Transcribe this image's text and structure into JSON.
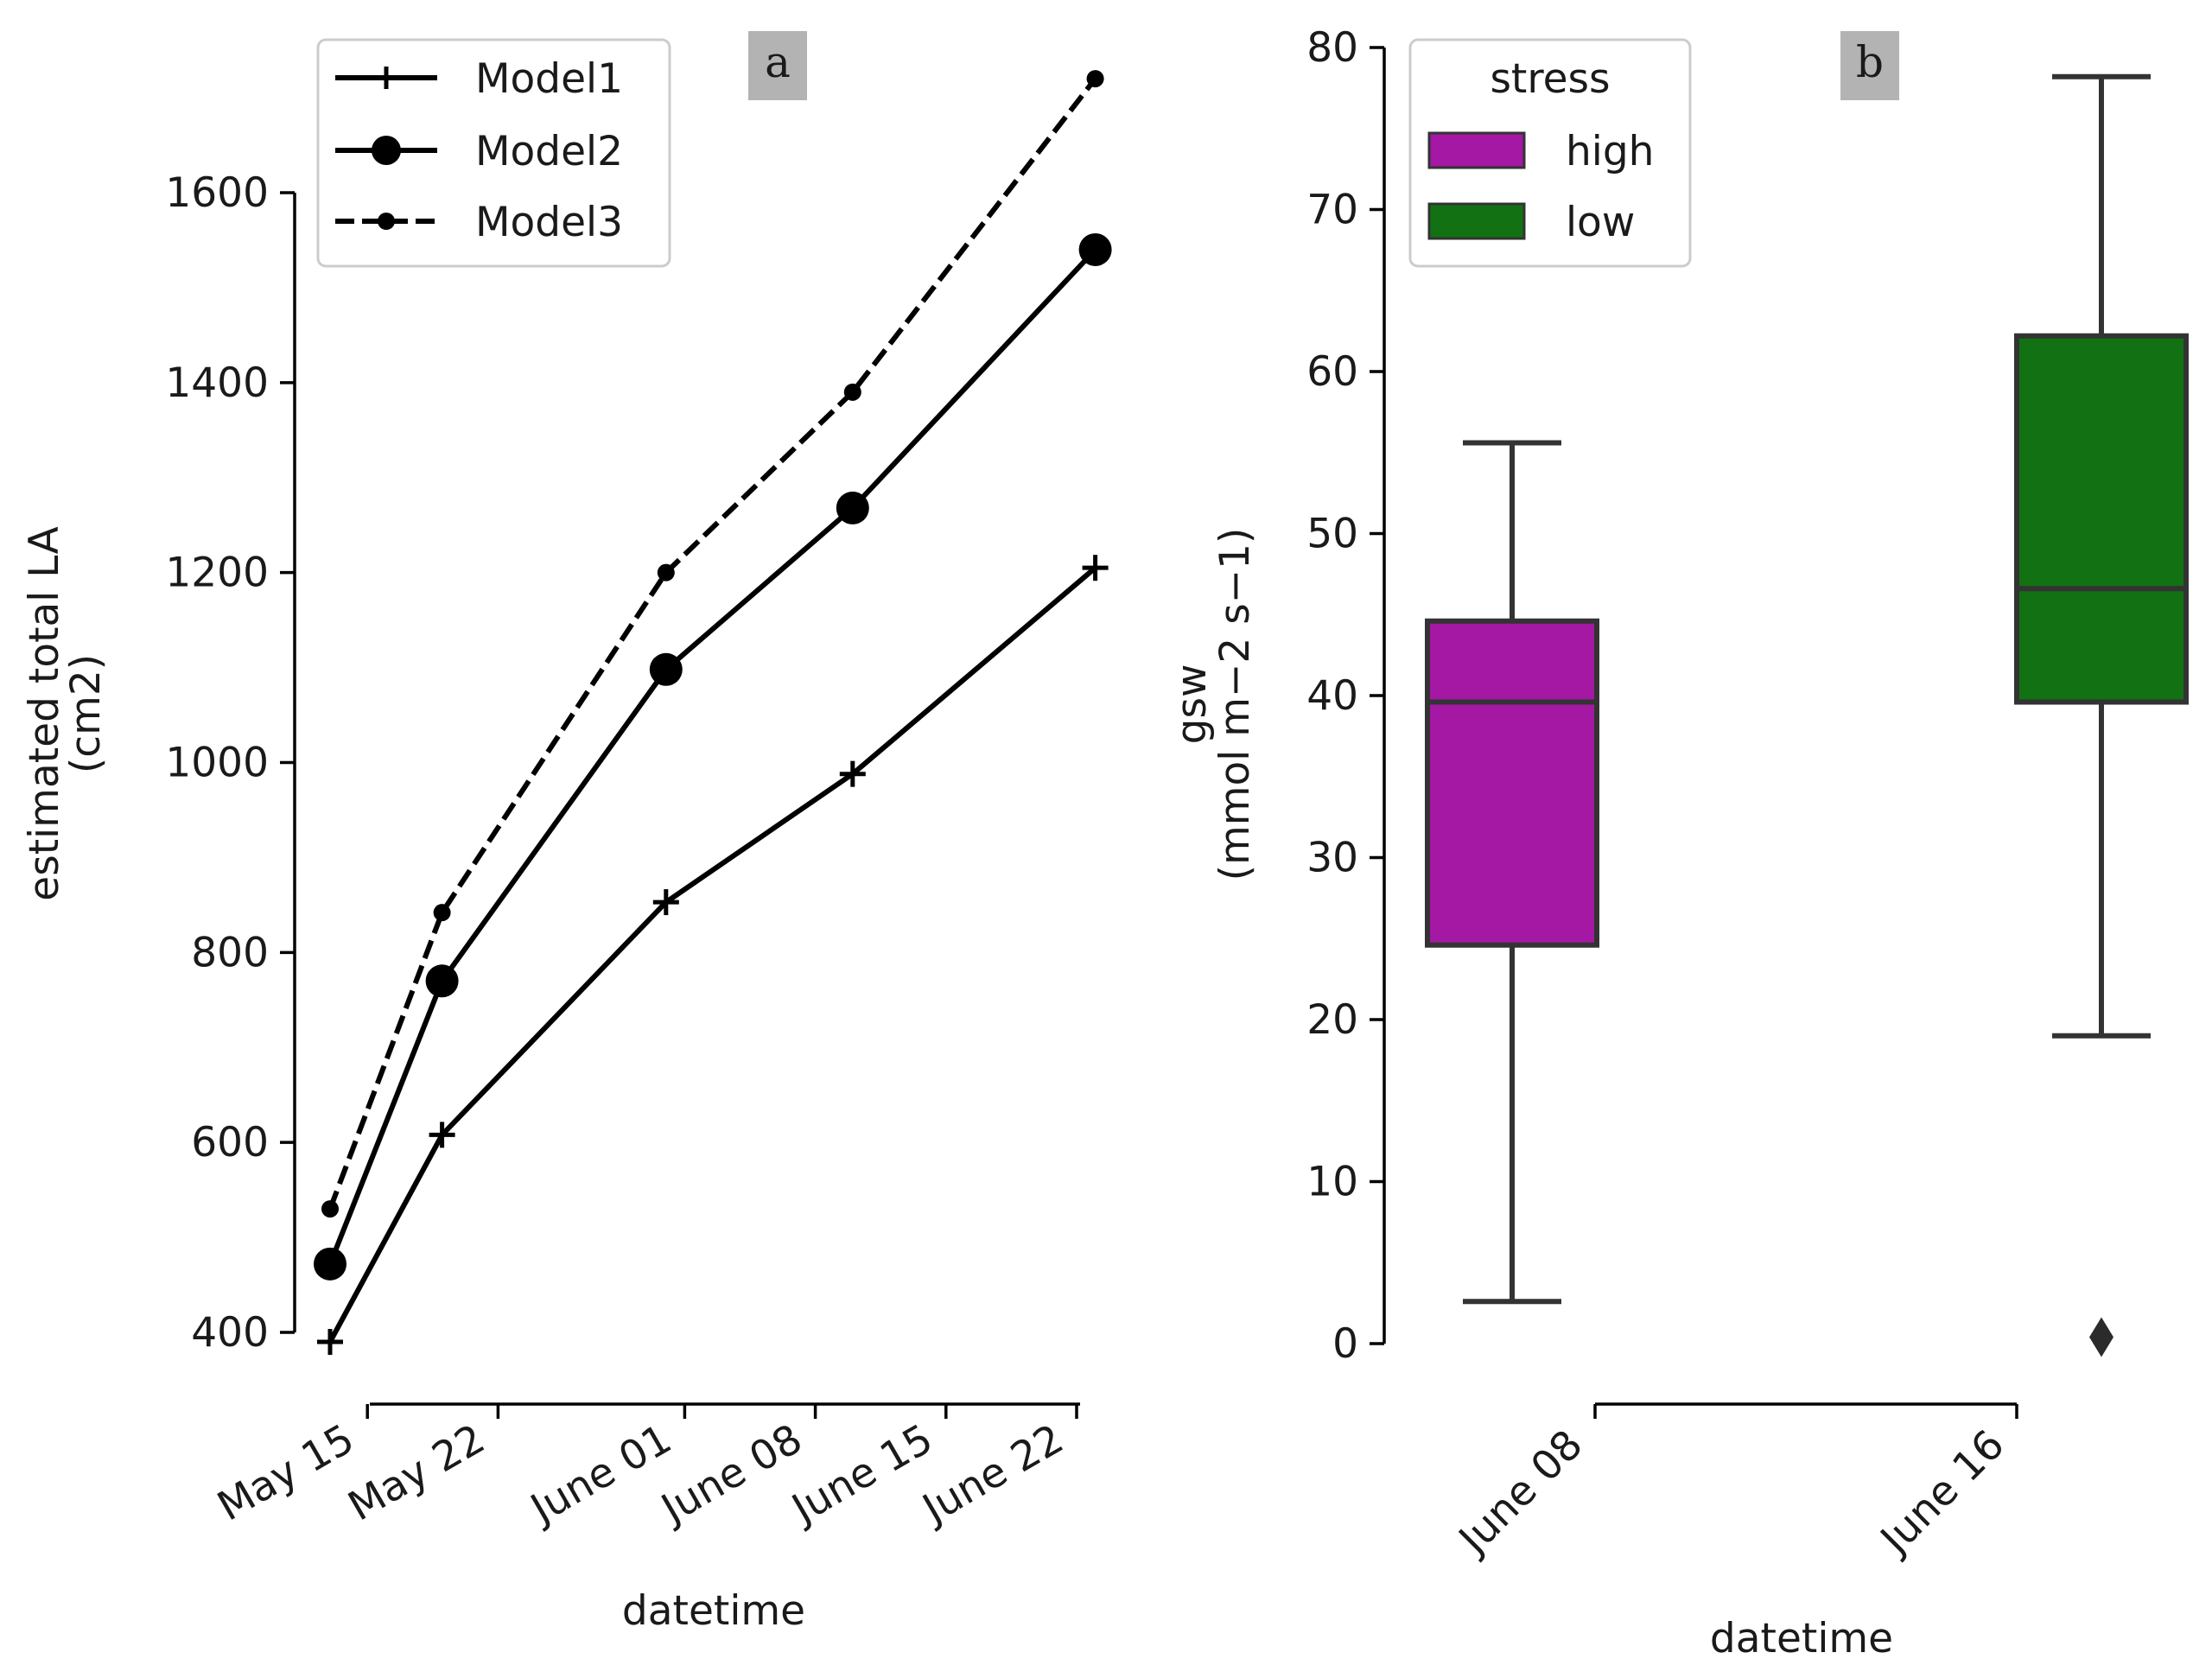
{
  "chart_data": [
    {
      "panel": "a",
      "type": "line",
      "panel_label": "a",
      "xlabel": "datetime",
      "ylabel_lines": [
        "estimated total LA",
        "(cm2)"
      ],
      "x_ticks": [
        "May 15",
        "May 22",
        "June 01",
        "June 08",
        "June 15",
        "June 22"
      ],
      "x_tick_dates": [
        "2023-05-15",
        "2023-05-22",
        "2023-06-01",
        "2023-06-08",
        "2023-06-15",
        "2023-06-22"
      ],
      "xlim": [
        "2023-05-13",
        "2023-06-22"
      ],
      "y_ticks": [
        400,
        600,
        800,
        1000,
        1200,
        1400,
        1600
      ],
      "ylim": [
        400,
        1600
      ],
      "grid": false,
      "legend_position": "top-left",
      "x": [
        "2023-05-13",
        "2023-05-19",
        "2023-05-31",
        "2023-06-10",
        "2023-06-23"
      ],
      "series": [
        {
          "name": "Model1",
          "marker": "plus",
          "dash": "solid",
          "values": [
            390,
            608,
            853,
            988,
            1205
          ]
        },
        {
          "name": "Model2",
          "marker": "circle",
          "dash": "solid",
          "values": [
            472,
            770,
            1098,
            1268,
            1540
          ]
        },
        {
          "name": "Model3",
          "marker": "dot",
          "dash": "dashed",
          "values": [
            530,
            842,
            1200,
            1390,
            1720
          ]
        }
      ]
    },
    {
      "panel": "b",
      "type": "box",
      "panel_label": "b",
      "xlabel": "datetime",
      "ylabel_lines": [
        "gsw",
        "(mmol m−2 s−1)"
      ],
      "categories": [
        "June 08",
        "June 16"
      ],
      "y_ticks": [
        0,
        10,
        20,
        30,
        40,
        50,
        60,
        70,
        80
      ],
      "ylim": [
        0,
        80
      ],
      "grid": false,
      "legend_title": "stress",
      "legend_position": "top-left",
      "boxes": [
        {
          "category": "June 08",
          "stress": "high",
          "color": "#a418a4",
          "whisker_low": 2.6,
          "q1": 24.6,
          "median": 39.6,
          "q3": 44.6,
          "whisker_high": 55.6,
          "outliers": []
        },
        {
          "category": "June 16",
          "stress": "low",
          "color": "#127112",
          "whisker_low": 19.0,
          "q1": 39.6,
          "median": 46.6,
          "q3": 62.2,
          "whisker_high": 78.2,
          "outliers": [
            0.4
          ]
        }
      ],
      "legend": [
        {
          "label": "high",
          "color": "#a418a4"
        },
        {
          "label": "low",
          "color": "#127112"
        }
      ]
    }
  ]
}
